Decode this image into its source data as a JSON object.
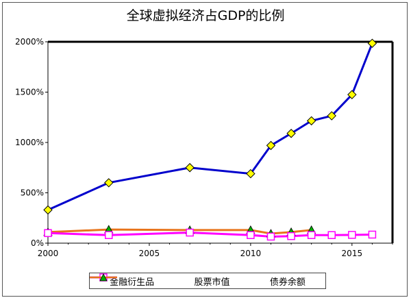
{
  "chart_data": {
    "type": "line",
    "title": "全球虚拟经济占GDP的比例",
    "xlabel": "",
    "ylabel": "",
    "xlim": [
      2000,
      2017
    ],
    "ylim": [
      0,
      2000
    ],
    "xticks": [
      2000,
      2005,
      2010,
      2015
    ],
    "yticks": [
      0,
      500,
      1000,
      1500,
      2000
    ],
    "yticklabel_suffix": "%",
    "grid": false,
    "legend_position": "bottom",
    "series": [
      {
        "name": "金融衍生品",
        "color": "#0000cc",
        "marker": "diamond",
        "marker_color": "#ffff00",
        "points": [
          [
            2000,
            330
          ],
          [
            2003,
            600
          ],
          [
            2007,
            750
          ],
          [
            2010,
            690
          ],
          [
            2011,
            970
          ],
          [
            2012,
            1090
          ],
          [
            2013,
            1215
          ],
          [
            2014,
            1265
          ],
          [
            2015,
            1475
          ],
          [
            2016,
            1985
          ]
        ]
      },
      {
        "name": "股票市值",
        "color": "#ff00ff",
        "marker": "square",
        "marker_color": "#ffffff",
        "points": [
          [
            2000,
            100
          ],
          [
            2003,
            80
          ],
          [
            2007,
            105
          ],
          [
            2010,
            80
          ],
          [
            2011,
            65
          ],
          [
            2012,
            70
          ],
          [
            2013,
            80
          ],
          [
            2014,
            80
          ],
          [
            2015,
            82
          ],
          [
            2016,
            85
          ]
        ]
      },
      {
        "name": "债券余额",
        "color": "#e8741c",
        "marker": "triangle",
        "marker_color": "#00b000",
        "points": [
          [
            2000,
            110
          ],
          [
            2003,
            135
          ],
          [
            2007,
            130
          ],
          [
            2010,
            130
          ],
          [
            2011,
            95
          ],
          [
            2012,
            110
          ],
          [
            2013,
            130
          ]
        ]
      }
    ]
  }
}
